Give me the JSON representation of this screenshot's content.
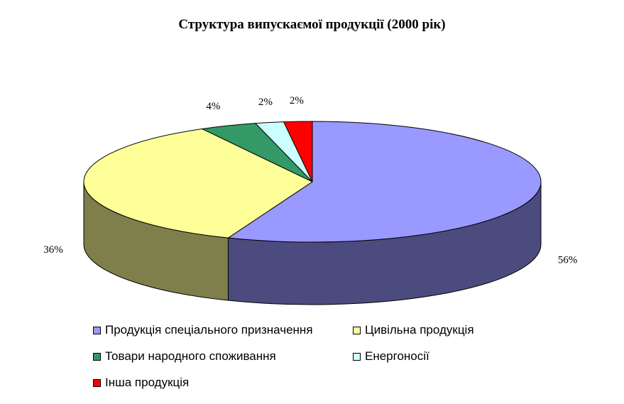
{
  "chart_data": {
    "type": "pie",
    "title": "Структура випускаємої продукції  (2000 рік)",
    "slices": [
      {
        "name": "Продукція спеціального призначення",
        "value": 56,
        "label": "56%",
        "color": "#9999ff",
        "side_color": "#4b4b7f"
      },
      {
        "name": "Цивільна продукція",
        "value": 36,
        "label": "36%",
        "color": "#ffff99",
        "side_color": "#7f7f4c"
      },
      {
        "name": "Товари народного споживання",
        "value": 4,
        "label": "4%",
        "color": "#339966",
        "side_color": "#194c33"
      },
      {
        "name": "Енергоносії",
        "value": 2,
        "label": "2%",
        "color": "#ccffff",
        "side_color": "#667f7f"
      },
      {
        "name": "Інша продукція",
        "value": 2,
        "label": "2%",
        "color": "#ff0000",
        "side_color": "#7f0000"
      }
    ],
    "legend_position": "bottom"
  }
}
